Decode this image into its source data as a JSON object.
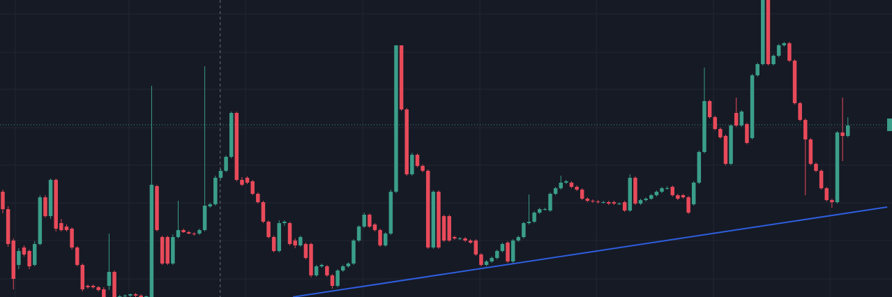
{
  "chart_data": {
    "type": "candlestick",
    "up_color": "#3a9e8a",
    "down_color": "#e84a5a",
    "grid": true,
    "grid_color": "#232733",
    "background": "#161a25",
    "xlim": [
      -0.525,
      167.3
    ],
    "ylim": [
      0,
      426
    ],
    "xticks": [
      2.36,
      23.75,
      45.67,
      67.72,
      89.76,
      111.68,
      133.73,
      155.64
    ],
    "yticks": [
      406,
      351,
      298,
      243,
      189,
      135,
      81,
      26
    ],
    "ohlc": [
      [
        151,
        154,
        120,
        126
      ],
      [
        126,
        130,
        72,
        76
      ],
      [
        81,
        84,
        11,
        26
      ],
      [
        46,
        70,
        40,
        66
      ],
      [
        71,
        74,
        58,
        61
      ],
      [
        66,
        68,
        40,
        44
      ],
      [
        46,
        80,
        44,
        76
      ],
      [
        76,
        146,
        74,
        143
      ],
      [
        143,
        146,
        114,
        116
      ],
      [
        116,
        170,
        112,
        168
      ],
      [
        168,
        170,
        94,
        98
      ],
      [
        106,
        112,
        94,
        96
      ],
      [
        101,
        104,
        94,
        96
      ],
      [
        98,
        100,
        68,
        71
      ],
      [
        71,
        73,
        44,
        46
      ],
      [
        46,
        48,
        8,
        11
      ],
      [
        16,
        18,
        12,
        14
      ],
      [
        16,
        18,
        12,
        14
      ],
      [
        14,
        16,
        8,
        10
      ],
      [
        11,
        14,
        0,
        0
      ],
      [
        16,
        91,
        10,
        36
      ],
      [
        36,
        38,
        0,
        0
      ],
      [
        0,
        3,
        0,
        1
      ],
      [
        1,
        4,
        0,
        2
      ],
      [
        2,
        5,
        0,
        4
      ],
      [
        4,
        6,
        0,
        2
      ],
      [
        2,
        4,
        0,
        0
      ],
      [
        0,
        2,
        0,
        1
      ],
      [
        0,
        303,
        0,
        161
      ],
      [
        159,
        161,
        94,
        96
      ],
      [
        86,
        88,
        46,
        48
      ],
      [
        86,
        88,
        46,
        48
      ],
      [
        48,
        90,
        46,
        86
      ],
      [
        86,
        138,
        84,
        96
      ],
      [
        96,
        98,
        92,
        93
      ],
      [
        93,
        95,
        90,
        91
      ],
      [
        91,
        93,
        88,
        90
      ],
      [
        91,
        98,
        89,
        96
      ],
      [
        96,
        331,
        94,
        131
      ],
      [
        130,
        135,
        128,
        133
      ],
      [
        133,
        174,
        131,
        171
      ],
      [
        171,
        184,
        169,
        181
      ],
      [
        181,
        203,
        179,
        201
      ],
      [
        201,
        266,
        199,
        264
      ],
      [
        264,
        266,
        166,
        168
      ],
      [
        168,
        172,
        159,
        161
      ],
      [
        171,
        173,
        162,
        164
      ],
      [
        166,
        168,
        146,
        148
      ],
      [
        148,
        150,
        134,
        136
      ],
      [
        136,
        138,
        106,
        108
      ],
      [
        108,
        110,
        84,
        86
      ],
      [
        86,
        88,
        64,
        66
      ],
      [
        66,
        110,
        64,
        106
      ],
      [
        106,
        110,
        102,
        108
      ],
      [
        106,
        108,
        74,
        76
      ],
      [
        81,
        84,
        70,
        74
      ],
      [
        74,
        88,
        72,
        86
      ],
      [
        76,
        78,
        54,
        56
      ],
      [
        76,
        78,
        28,
        31
      ],
      [
        31,
        46,
        29,
        44
      ],
      [
        44,
        48,
        42,
        46
      ],
      [
        44,
        46,
        29,
        31
      ],
      [
        31,
        33,
        12,
        16
      ],
      [
        16,
        40,
        14,
        38
      ],
      [
        38,
        46,
        36,
        44
      ],
      [
        44,
        50,
        42,
        48
      ],
      [
        48,
        83,
        46,
        81
      ],
      [
        81,
        103,
        79,
        101
      ],
      [
        101,
        121,
        99,
        118
      ],
      [
        118,
        120,
        99,
        101
      ],
      [
        104,
        106,
        94,
        96
      ],
      [
        96,
        98,
        72,
        74
      ],
      [
        74,
        93,
        72,
        91
      ],
      [
        91,
        154,
        89,
        151
      ],
      [
        151,
        361,
        149,
        361
      ],
      [
        361,
        361,
        267,
        269
      ],
      [
        269,
        271,
        174,
        176
      ],
      [
        176,
        207,
        174,
        204
      ],
      [
        204,
        206,
        186,
        188
      ],
      [
        188,
        190,
        179,
        181
      ],
      [
        181,
        183,
        69,
        71
      ],
      [
        71,
        153,
        69,
        151
      ],
      [
        151,
        153,
        69,
        71
      ],
      [
        116,
        118,
        79,
        81
      ],
      [
        116,
        118,
        79,
        81
      ],
      [
        86,
        88,
        82,
        84
      ],
      [
        84,
        86,
        82,
        84
      ],
      [
        84,
        86,
        79,
        81
      ],
      [
        81,
        83,
        76,
        78
      ],
      [
        81,
        83,
        59,
        61
      ],
      [
        61,
        63,
        44,
        46
      ],
      [
        46,
        53,
        44,
        51
      ],
      [
        51,
        58,
        49,
        56
      ],
      [
        56,
        68,
        54,
        66
      ],
      [
        66,
        78,
        64,
        76
      ],
      [
        78,
        80,
        49,
        51
      ],
      [
        51,
        83,
        49,
        81
      ],
      [
        81,
        88,
        79,
        86
      ],
      [
        86,
        108,
        84,
        106
      ],
      [
        106,
        147,
        104,
        108
      ],
      [
        108,
        123,
        106,
        121
      ],
      [
        121,
        128,
        119,
        126
      ],
      [
        126,
        128,
        124,
        126
      ],
      [
        124,
        150,
        122,
        148
      ],
      [
        148,
        158,
        146,
        156
      ],
      [
        156,
        174,
        154,
        164
      ],
      [
        164,
        168,
        162,
        166
      ],
      [
        164,
        166,
        156,
        158
      ],
      [
        158,
        160,
        152,
        154
      ],
      [
        154,
        156,
        139,
        141
      ],
      [
        141,
        143,
        136,
        138
      ],
      [
        138,
        140,
        135,
        137
      ],
      [
        137,
        139,
        134,
        136
      ],
      [
        136,
        138,
        134,
        136
      ],
      [
        136,
        138,
        132,
        134
      ],
      [
        136,
        138,
        132,
        134
      ],
      [
        134,
        136,
        132,
        134
      ],
      [
        136,
        138,
        122,
        124
      ],
      [
        124,
        176,
        122,
        171
      ],
      [
        171,
        173,
        132,
        134
      ],
      [
        134,
        141,
        132,
        139
      ],
      [
        139,
        143,
        137,
        141
      ],
      [
        141,
        148,
        139,
        146
      ],
      [
        146,
        153,
        144,
        151
      ],
      [
        151,
        158,
        149,
        156
      ],
      [
        156,
        159,
        154,
        156
      ],
      [
        158,
        160,
        144,
        146
      ],
      [
        146,
        148,
        139,
        141
      ],
      [
        146,
        148,
        141,
        143
      ],
      [
        143,
        145,
        119,
        121
      ],
      [
        133,
        166,
        131,
        164
      ],
      [
        164,
        210,
        162,
        208
      ],
      [
        208,
        329,
        206,
        281
      ],
      [
        281,
        283,
        256,
        258
      ],
      [
        258,
        260,
        239,
        241
      ],
      [
        241,
        243,
        227,
        229
      ],
      [
        231,
        233,
        189,
        191
      ],
      [
        191,
        248,
        189,
        246
      ],
      [
        264,
        286,
        244,
        246
      ],
      [
        246,
        268,
        244,
        266
      ],
      [
        248,
        250,
        219,
        221
      ],
      [
        228,
        320,
        226,
        318
      ],
      [
        318,
        336,
        316,
        334
      ],
      [
        334,
        426,
        332,
        426
      ],
      [
        426,
        426,
        332,
        334
      ],
      [
        334,
        348,
        332,
        346
      ],
      [
        346,
        363,
        344,
        361
      ],
      [
        361,
        366,
        359,
        364
      ],
      [
        364,
        366,
        337,
        339
      ],
      [
        339,
        341,
        276,
        278
      ],
      [
        278,
        280,
        252,
        254
      ],
      [
        254,
        256,
        146,
        226
      ],
      [
        226,
        228,
        189,
        191
      ],
      [
        191,
        193,
        179,
        181
      ],
      [
        181,
        183,
        154,
        156
      ],
      [
        156,
        158,
        137,
        139
      ],
      [
        139,
        141,
        128,
        136
      ],
      [
        136,
        238,
        134,
        236
      ],
      [
        236,
        286,
        195,
        231
      ],
      [
        231,
        258,
        229,
        246
      ]
    ],
    "trendline": {
      "color": "#2f5fe0",
      "x": [
        54.6,
        166.4
      ],
      "values": [
        0,
        129
      ]
    },
    "price_line": {
      "value": 247,
      "color": "#3a9e8a"
    },
    "crosshair_x": 40.9
  }
}
